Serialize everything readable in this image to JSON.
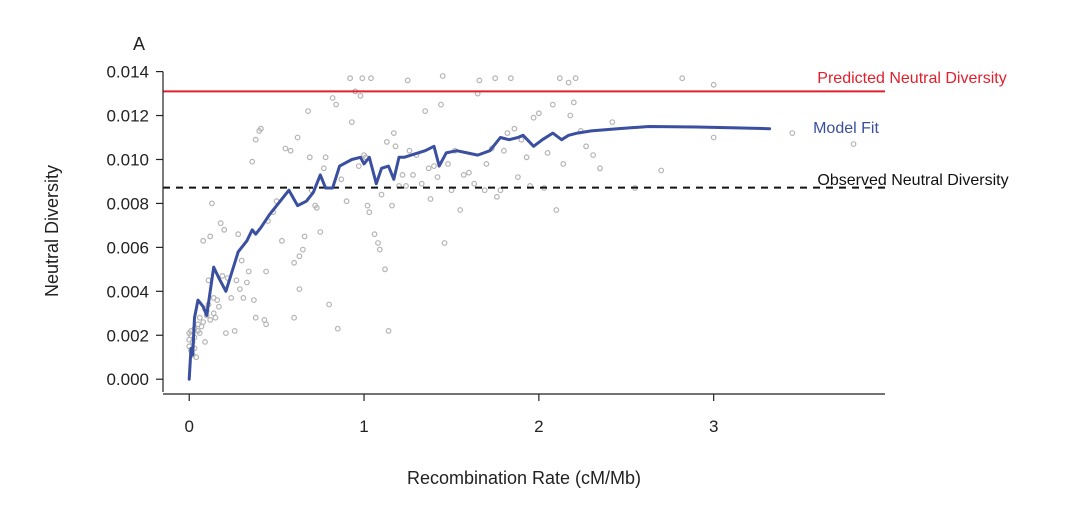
{
  "chart_data": {
    "type": "scatter",
    "panel_label": "A",
    "xlabel": "Recombination Rate (cM/Mb)",
    "ylabel": "Neutral Diversity",
    "xlim": [
      -0.15,
      3.98
    ],
    "ylim": [
      -0.0004,
      0.0143
    ],
    "x_ticks": [
      0,
      1,
      2,
      3
    ],
    "x_tick_labels": [
      "0",
      "1",
      "2",
      "3"
    ],
    "y_ticks": [
      0,
      0.002,
      0.004,
      0.006,
      0.008,
      0.01,
      0.012,
      0.014
    ],
    "y_tick_labels": [
      "0.000",
      "0.002",
      "0.004",
      "0.006",
      "0.008",
      "0.010",
      "0.012",
      "0.014"
    ],
    "grid": false,
    "colors": {
      "predicted": "#e0202c",
      "model_fit": "#3a4fa0",
      "observed": "#111111",
      "points": "#b4b4b4",
      "axis": "#222222"
    },
    "reference_lines": [
      {
        "name": "Predicted Neutral Diversity",
        "y": 0.0131,
        "color": "#e0202c",
        "style": "solid"
      },
      {
        "name": "Observed Neutral Diversity",
        "y": 0.00872,
        "color": "#111111",
        "style": "dashed"
      }
    ],
    "series": [
      {
        "name": "Model Fit",
        "kind": "line",
        "color": "#3a4fa0",
        "x": [
          0.0,
          0.01,
          0.02,
          0.03,
          0.05,
          0.08,
          0.1,
          0.14,
          0.17,
          0.21,
          0.28,
          0.33,
          0.36,
          0.38,
          0.41,
          0.46,
          0.51,
          0.57,
          0.62,
          0.67,
          0.71,
          0.75,
          0.78,
          0.82,
          0.86,
          0.93,
          0.98,
          1.0,
          1.03,
          1.07,
          1.1,
          1.14,
          1.17,
          1.2,
          1.23,
          1.27,
          1.35,
          1.4,
          1.43,
          1.47,
          1.53,
          1.59,
          1.65,
          1.72,
          1.78,
          1.83,
          1.88,
          1.91,
          1.97,
          2.02,
          2.08,
          2.13,
          2.17,
          2.22,
          2.3,
          2.45,
          2.63,
          2.9,
          3.1,
          3.32
        ],
        "y": [
          0.0,
          0.0014,
          0.0011,
          0.0028,
          0.0036,
          0.0033,
          0.0029,
          0.0051,
          0.0046,
          0.004,
          0.0058,
          0.0063,
          0.0068,
          0.0066,
          0.0069,
          0.0075,
          0.008,
          0.0086,
          0.0079,
          0.0081,
          0.0085,
          0.0093,
          0.0087,
          0.0087,
          0.0097,
          0.01,
          0.0101,
          0.0098,
          0.0101,
          0.0089,
          0.0096,
          0.0097,
          0.0091,
          0.0101,
          0.0101,
          0.0102,
          0.0104,
          0.0106,
          0.0097,
          0.0103,
          0.0104,
          0.0103,
          0.0102,
          0.0104,
          0.011,
          0.0109,
          0.011,
          0.0111,
          0.0106,
          0.0109,
          0.0112,
          0.0109,
          0.0111,
          0.0112,
          0.0113,
          0.0114,
          0.0115,
          0.01148,
          0.01144,
          0.0114
        ]
      },
      {
        "name": "",
        "kind": "scatter",
        "color": "#b4b4b4",
        "x": [
          0.0,
          0.0,
          0.0,
          0.01,
          0.01,
          0.01,
          0.02,
          0.02,
          0.03,
          0.03,
          0.03,
          0.04,
          0.05,
          0.05,
          0.06,
          0.06,
          0.07,
          0.08,
          0.08,
          0.09,
          0.09,
          0.1,
          0.1,
          0.11,
          0.11,
          0.12,
          0.12,
          0.13,
          0.14,
          0.14,
          0.15,
          0.16,
          0.17,
          0.18,
          0.19,
          0.2,
          0.21,
          0.22,
          0.24,
          0.26,
          0.27,
          0.28,
          0.29,
          0.3,
          0.31,
          0.33,
          0.34,
          0.36,
          0.37,
          0.38,
          0.38,
          0.4,
          0.41,
          0.43,
          0.44,
          0.44,
          0.45,
          0.48,
          0.5,
          0.53,
          0.55,
          0.58,
          0.6,
          0.6,
          0.62,
          0.63,
          0.63,
          0.65,
          0.66,
          0.68,
          0.69,
          0.7,
          0.72,
          0.73,
          0.75,
          0.77,
          0.78,
          0.8,
          0.82,
          0.84,
          0.85,
          0.87,
          0.9,
          0.92,
          0.93,
          0.95,
          0.97,
          0.98,
          0.99,
          1.0,
          1.01,
          1.02,
          1.03,
          1.04,
          1.06,
          1.08,
          1.09,
          1.1,
          1.12,
          1.13,
          1.14,
          1.16,
          1.17,
          1.18,
          1.2,
          1.22,
          1.24,
          1.25,
          1.26,
          1.28,
          1.3,
          1.33,
          1.35,
          1.37,
          1.38,
          1.4,
          1.42,
          1.44,
          1.45,
          1.46,
          1.48,
          1.5,
          1.52,
          1.55,
          1.57,
          1.6,
          1.63,
          1.65,
          1.66,
          1.69,
          1.7,
          1.73,
          1.75,
          1.76,
          1.78,
          1.8,
          1.82,
          1.84,
          1.86,
          1.88,
          1.9,
          1.93,
          1.95,
          1.97,
          2.0,
          2.03,
          2.05,
          2.08,
          2.1,
          2.12,
          2.14,
          2.17,
          2.18,
          2.2,
          2.21,
          2.24,
          2.27,
          2.31,
          2.35,
          2.42,
          2.55,
          2.7,
          2.82,
          3.0,
          3.0,
          3.45,
          3.8
        ],
        "y": [
          0.0021,
          0.0018,
          0.0015,
          0.0013,
          0.002,
          0.0022,
          0.0011,
          0.0017,
          0.0014,
          0.0023,
          0.0019,
          0.001,
          0.0022,
          0.0025,
          0.0021,
          0.0028,
          0.0024,
          0.0063,
          0.0026,
          0.0032,
          0.0017,
          0.0029,
          0.0031,
          0.0034,
          0.0045,
          0.0027,
          0.0065,
          0.008,
          0.0037,
          0.003,
          0.0028,
          0.0036,
          0.0033,
          0.0071,
          0.0047,
          0.0068,
          0.0021,
          0.0046,
          0.0037,
          0.0022,
          0.0045,
          0.0066,
          0.0041,
          0.0054,
          0.0037,
          0.0044,
          0.0049,
          0.0099,
          0.0036,
          0.0109,
          0.0028,
          0.0113,
          0.0114,
          0.0027,
          0.0025,
          0.0049,
          0.0072,
          0.0076,
          0.0081,
          0.0063,
          0.0105,
          0.0104,
          0.0028,
          0.0053,
          0.011,
          0.0041,
          0.0056,
          0.0059,
          0.0065,
          0.0122,
          0.0101,
          0.0086,
          0.0079,
          0.0078,
          0.0067,
          0.0096,
          0.0101,
          0.0034,
          0.0128,
          0.0125,
          0.0023,
          0.0091,
          0.0081,
          0.0137,
          0.0117,
          0.0131,
          0.0097,
          0.0129,
          0.0137,
          0.0102,
          0.0101,
          0.0079,
          0.0076,
          0.0137,
          0.0066,
          0.0062,
          0.0059,
          0.0084,
          0.005,
          0.0108,
          0.0022,
          0.0079,
          0.0112,
          0.0106,
          0.0088,
          0.0093,
          0.0088,
          0.0136,
          0.0104,
          0.0093,
          0.0102,
          0.0089,
          0.0122,
          0.0096,
          0.0082,
          0.0097,
          0.0092,
          0.0125,
          0.0138,
          0.0062,
          0.0098,
          0.0086,
          0.0104,
          0.0077,
          0.0093,
          0.0094,
          0.0089,
          0.013,
          0.0136,
          0.0086,
          0.0098,
          0.0105,
          0.0137,
          0.0083,
          0.0086,
          0.0104,
          0.0112,
          0.0137,
          0.0114,
          0.0092,
          0.0109,
          0.0101,
          0.0088,
          0.0119,
          0.0121,
          0.0087,
          0.0103,
          0.0125,
          0.0077,
          0.0137,
          0.0098,
          0.0135,
          0.012,
          0.0126,
          0.0137,
          0.0113,
          0.0106,
          0.0102,
          0.0096,
          0.0117,
          0.0087,
          0.0095,
          0.0137,
          0.0134,
          0.011,
          0.0112,
          0.0107
        ]
      }
    ],
    "annotations": [
      {
        "text": "Predicted Neutral Diversity",
        "color": "#e0202c"
      },
      {
        "text": "Model Fit",
        "color": "#3a4fa0"
      },
      {
        "text": "Observed Neutral Diversity",
        "color": "#111111"
      }
    ]
  }
}
